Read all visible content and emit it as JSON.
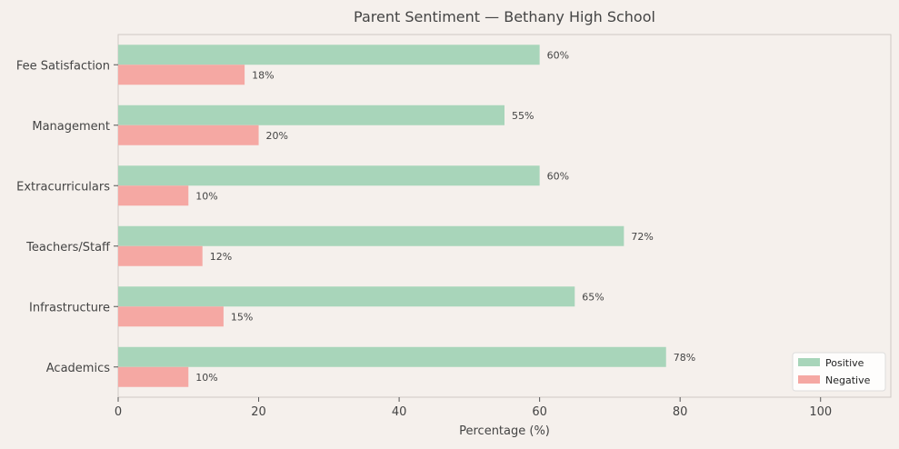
{
  "chart_data": {
    "type": "bar",
    "orientation": "horizontal",
    "title": "Parent Sentiment — Bethany High School",
    "xlabel": "Percentage (%)",
    "ylabel": "",
    "categories": [
      "Academics",
      "Infrastructure",
      "Teachers/Staff",
      "Extracurriculars",
      "Management",
      "Fee Satisfaction"
    ],
    "series": [
      {
        "name": "Positive",
        "values": [
          78,
          65,
          72,
          60,
          55,
          60
        ],
        "color": "#a8d5ba"
      },
      {
        "name": "Negative",
        "values": [
          10,
          15,
          12,
          10,
          20,
          18
        ],
        "color": "#f5a8a3"
      }
    ],
    "value_suffix": "%",
    "xlim": [
      0,
      110
    ],
    "xticks": [
      0,
      20,
      40,
      60,
      80,
      100
    ],
    "grid": false,
    "legend_position": "bottom-right"
  },
  "colors": {
    "background": "#f5f0ec",
    "axis": "#cfc9c4",
    "text": "#444444"
  }
}
